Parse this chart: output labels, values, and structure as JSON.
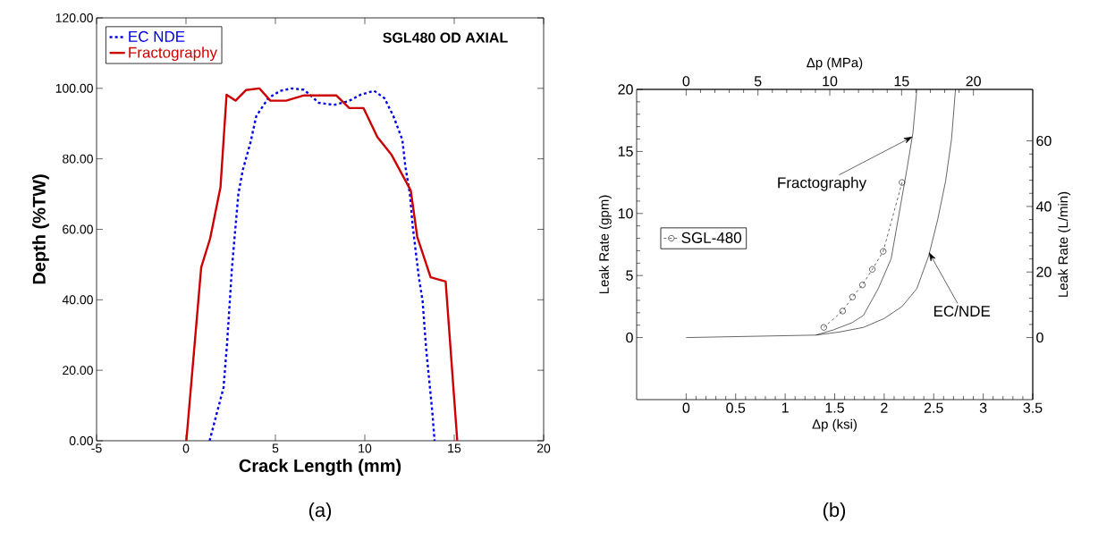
{
  "chart_data": [
    {
      "type": "line",
      "title": "SGL480 OD AXIAL",
      "xlabel": "Crack Length (mm)",
      "ylabel": "Depth (%TW)",
      "xlim": [
        -5,
        20
      ],
      "xticks": [
        -5,
        0,
        5,
        10,
        15,
        20
      ],
      "ylim": [
        0,
        120
      ],
      "yticks": [
        {
          "value": 0,
          "label": "0.00"
        },
        {
          "value": 20,
          "label": "20.00"
        },
        {
          "value": 40,
          "label": "40.00"
        },
        {
          "value": 60,
          "label": "60.00"
        },
        {
          "value": 80,
          "label": "80.00"
        },
        {
          "value": 100,
          "label": "100.00"
        },
        {
          "value": 120,
          "label": "120.00"
        }
      ],
      "legend": "top left",
      "annotations": [
        "(a)"
      ],
      "series": [
        {
          "name": "EC NDE",
          "color": "#0000ee",
          "line_style": "dashed",
          "x": [
            1.32,
            2.1,
            2.3,
            2.57,
            2.77,
            2.93,
            3.18,
            3.6,
            3.93,
            4.6,
            5.27,
            5.93,
            6.6,
            7.43,
            8.27,
            9.1,
            9.77,
            10.52,
            11.1,
            11.6,
            12.1,
            12.27,
            12.52,
            12.68,
            13.02,
            13.23,
            13.43,
            13.77,
            13.9
          ],
          "values": [
            0,
            15.1,
            27.8,
            49,
            60.8,
            70.1,
            76.9,
            84.5,
            92.1,
            97.2,
            99.3,
            100,
            99.6,
            95.9,
            95.3,
            96.4,
            98.2,
            99.3,
            97.2,
            92.1,
            85.4,
            77.7,
            70.1,
            60.8,
            46.4,
            39.7,
            26.1,
            8.4,
            0
          ]
        },
        {
          "name": "Fractography",
          "color": "#cc0000",
          "line_style": "solid",
          "x": [
            0.02,
            0.85,
            1.35,
            1.93,
            2.27,
            2.77,
            3.35,
            4.1,
            4.72,
            5.6,
            6.6,
            8.4,
            9.13,
            9.93,
            10.7,
            11.5,
            12.57,
            12.93,
            13.68,
            14.52,
            15.17
          ],
          "values": [
            0,
            49.2,
            57.4,
            72,
            98.2,
            96.5,
            99.5,
            100,
            96.5,
            96.5,
            98,
            98,
            94.4,
            94.4,
            86.2,
            81.1,
            71,
            57.9,
            46.4,
            45.2,
            0
          ]
        }
      ]
    },
    {
      "type": "line",
      "xlabel": "Δp (ksi)",
      "ylabel": "Leak Rate (gpm)",
      "x2label": "Δp (MPa)",
      "y2label": "Leak Rate (L/min)",
      "xlim": [
        -0.5,
        3.5
      ],
      "xticks": [
        0,
        0.5,
        1,
        1.5,
        2,
        2.5,
        3,
        3.5
      ],
      "ylim": [
        -5,
        20
      ],
      "yticks": [
        0,
        5,
        10,
        15,
        20
      ],
      "x2lim": [
        -3.447,
        24.13
      ],
      "x2ticks": [
        0,
        5,
        10,
        15,
        20
      ],
      "y2lim": [
        -18.93,
        75.71
      ],
      "y2ticks": [
        0,
        20,
        40,
        60
      ],
      "legend": "left",
      "annotations": [
        {
          "text": "Fractography",
          "x": 2.29,
          "y": 16.2
        },
        {
          "text": "EC/NDE",
          "x": 2.45,
          "y": 6.9
        },
        "(b)"
      ],
      "series": [
        {
          "color": "#000000",
          "line_style": "solid",
          "marker": "none",
          "x": [
            0,
            1.31,
            1.49,
            1.67,
            1.79,
            1.94,
            2.07,
            2.15,
            2.23,
            2.29,
            2.33
          ],
          "values": [
            0,
            0.2,
            0.63,
            1.18,
            1.78,
            3.95,
            6.35,
            9.96,
            13.6,
            16.5,
            20
          ]
        },
        {
          "color": "#000000",
          "line_style": "solid",
          "marker": "none",
          "x": [
            1.31,
            1.55,
            1.79,
            2.0,
            2.18,
            2.33,
            2.45,
            2.54,
            2.62,
            2.68,
            2.72
          ],
          "values": [
            0.2,
            0.45,
            0.82,
            1.54,
            2.5,
            3.95,
            6.6,
            9.5,
            12.6,
            16,
            20
          ]
        },
        {
          "name": "SGL-480",
          "color": "#000000",
          "line_style": "dashed",
          "marker": "circle",
          "x": [
            1.39,
            1.58,
            1.68,
            1.78,
            1.88,
            1.99,
            2.18
          ],
          "values": [
            0.82,
            2.14,
            3.27,
            4.24,
            5.5,
            6.95,
            12.5
          ]
        }
      ]
    }
  ]
}
